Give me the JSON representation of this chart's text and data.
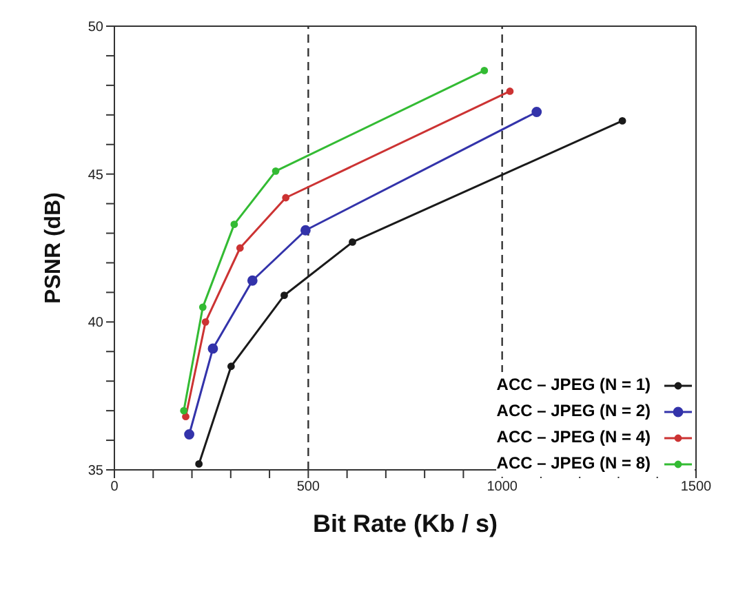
{
  "chart_data": {
    "type": "line",
    "xlabel": "Bit Rate (Kb / s)",
    "ylabel": "PSNR (dB)",
    "xlim": [
      0,
      1500
    ],
    "ylim": [
      35,
      50
    ],
    "xticks": [
      0,
      {
        "value": 100,
        "label": null
      },
      {
        "value": 200,
        "label": null
      },
      {
        "value": 300,
        "label": null
      },
      {
        "value": 400,
        "label": null
      },
      500,
      {
        "value": 600,
        "label": null
      },
      {
        "value": 700,
        "label": null
      },
      {
        "value": 800,
        "label": null
      },
      {
        "value": 900,
        "label": null
      },
      1000,
      {
        "value": 1100,
        "label": null
      },
      {
        "value": 1200,
        "label": null
      },
      {
        "value": 1300,
        "label": null
      },
      {
        "value": 1400,
        "label": null
      },
      1500
    ],
    "yticks": [
      35,
      {
        "value": 36,
        "label": null
      },
      {
        "value": 37,
        "label": null
      },
      {
        "value": 38,
        "label": null
      },
      {
        "value": 39,
        "label": null
      },
      40,
      {
        "value": 41,
        "label": null
      },
      {
        "value": 42,
        "label": null
      },
      {
        "value": 43,
        "label": null
      },
      {
        "value": 44,
        "label": null
      },
      45,
      {
        "value": 46,
        "label": null
      },
      {
        "value": 47,
        "label": null
      },
      {
        "value": 48,
        "label": null
      },
      {
        "value": 49,
        "label": null
      },
      50
    ],
    "marker": "circle",
    "legend": "right",
    "ref_lines": [
      {
        "axis": "x",
        "value": 500,
        "color": "#333333",
        "line_style": "dashed"
      },
      {
        "axis": "x",
        "value": 1000,
        "color": "#333333",
        "line_style": "dashed"
      }
    ],
    "series": [
      {
        "name": "ACC – JPEG (N = 1)",
        "color": "#1a1a1a",
        "x": [
          218,
          301,
          438,
          614,
          1310
        ],
        "values": [
          35.2,
          38.5,
          40.9,
          42.7,
          46.8
        ]
      },
      {
        "name": "ACC – JPEG (N = 2)",
        "color": "#3333aa",
        "x": [
          193,
          254,
          356,
          493,
          1089
        ],
        "values": [
          36.2,
          39.1,
          41.4,
          43.1,
          47.1
        ]
      },
      {
        "name": "ACC – JPEG (N = 4)",
        "color": "#cc3333",
        "x": [
          184,
          235,
          324,
          442,
          1020
        ],
        "values": [
          36.8,
          40.0,
          42.5,
          44.2,
          47.8
        ]
      },
      {
        "name": "ACC – JPEG (N = 8)",
        "color": "#33bb33",
        "x": [
          179,
          228,
          309,
          416,
          954
        ],
        "values": [
          37.0,
          40.5,
          43.3,
          45.1,
          48.5
        ]
      }
    ]
  }
}
